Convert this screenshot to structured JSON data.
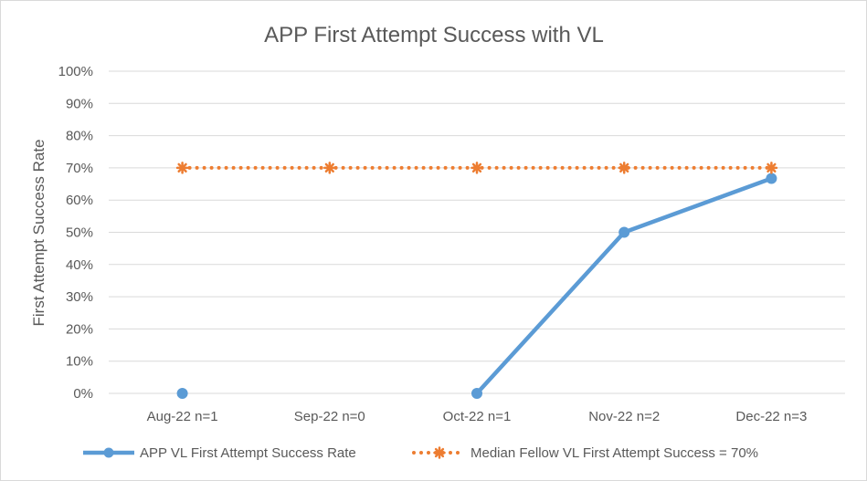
{
  "chart_data": {
    "type": "line",
    "title": "APP First Attempt Success with VL",
    "xlabel": "",
    "ylabel": "First Attempt Success Rate",
    "categories": [
      "Aug-22 n=1",
      "Sep-22 n=0",
      "Oct-22 n=1",
      "Nov-22 n=2",
      "Dec-22 n=3"
    ],
    "yticks": [
      "0%",
      "10%",
      "20%",
      "30%",
      "40%",
      "50%",
      "60%",
      "70%",
      "80%",
      "90%",
      "100%"
    ],
    "ylim": [
      0,
      100
    ],
    "grid": true,
    "legend_position": "bottom",
    "series": [
      {
        "name": "APP VL First Attempt Success Rate",
        "values": [
          0,
          null,
          0,
          50,
          66.7
        ],
        "color": "#5b9bd5",
        "style": "solid",
        "marker": "circle"
      },
      {
        "name": "Median Fellow VL First Attempt Success = 70%",
        "values": [
          70,
          70,
          70,
          70,
          70
        ],
        "color": "#ed7d31",
        "style": "dotted",
        "marker": "star"
      }
    ]
  }
}
